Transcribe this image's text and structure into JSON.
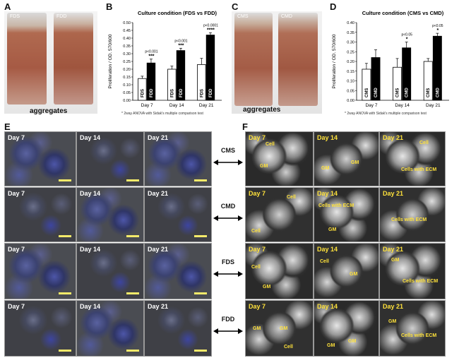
{
  "panels": {
    "A": "A",
    "B": "B",
    "C": "C",
    "D": "D",
    "E": "E",
    "F": "F"
  },
  "vials": {
    "a_left": "FDS",
    "a_right": "FDD",
    "c_left": "CMS",
    "c_right": "CMD",
    "aggregates": "aggregates"
  },
  "note": "* 2way ANOVA with Sidak's multiple comparison test",
  "conditions": [
    "CMS",
    "CMD",
    "FDS",
    "FDD"
  ],
  "days": [
    "Day 7",
    "Day 14",
    "Day 21"
  ],
  "sem_annotations": {
    "cell": "Cell",
    "gm": "GM",
    "cells_ecm": "Cells with ECM"
  },
  "chart_data": [
    {
      "type": "bar",
      "title": "Culture condition (FDS vs FDD)",
      "ylabel": "Proliferation / OD. 570/600",
      "categories": [
        "Day 7",
        "Day 14",
        "Day 21"
      ],
      "ylim": [
        0,
        0.5
      ],
      "yticks": [
        "0.00",
        "0.05",
        "0.10",
        "0.15",
        "0.20",
        "0.25",
        "0.30",
        "0.35",
        "0.40",
        "0.45",
        "0.50"
      ],
      "series": [
        {
          "name": "FDS",
          "values": [
            0.14,
            0.2,
            0.23
          ],
          "errors": [
            0.015,
            0.02,
            0.04
          ],
          "color": "#ffffff"
        },
        {
          "name": "FDD",
          "values": [
            0.24,
            0.32,
            0.42
          ],
          "errors": [
            0.025,
            0.015,
            0.015
          ],
          "color": "#000000"
        }
      ],
      "annotations": [
        {
          "pval": "p<0.001",
          "stars": "***"
        },
        {
          "pval": "p<0.001",
          "stars": "***"
        },
        {
          "pval": "p<0.0001",
          "stars": "****"
        }
      ]
    },
    {
      "type": "bar",
      "title": "Culture condition (CMS vs CMD)",
      "ylabel": "Proliferation / OD. 570/600",
      "categories": [
        "Day 7",
        "Day 14",
        "Day 21"
      ],
      "ylim": [
        0,
        0.4
      ],
      "yticks": [
        "0.00",
        "0.05",
        "0.10",
        "0.15",
        "0.20",
        "0.25",
        "0.30",
        "0.35",
        "0.40"
      ],
      "series": [
        {
          "name": "CMS",
          "values": [
            0.16,
            0.17,
            0.2
          ],
          "errors": [
            0.03,
            0.045,
            0.015
          ],
          "color": "#ffffff"
        },
        {
          "name": "CMD",
          "values": [
            0.22,
            0.27,
            0.33
          ],
          "errors": [
            0.04,
            0.03,
            0.015
          ],
          "color": "#000000"
        }
      ],
      "annotations": [
        {
          "pval": "",
          "stars": ""
        },
        {
          "pval": "p<0.05",
          "stars": "*"
        },
        {
          "pval": "p<0.05",
          "stars": "*"
        }
      ]
    }
  ]
}
